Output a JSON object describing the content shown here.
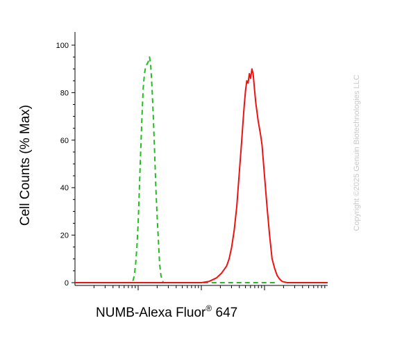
{
  "chart_data": {
    "type": "line",
    "title": "",
    "xlabel": "NUMB-Alexa Fluor",
    "xlabel_sup": "®",
    "xlabel_suffix": " 647",
    "ylabel": "Cell Counts (% Max)",
    "x_scale": "log",
    "x_ticks_shown": false,
    "ylim": [
      0,
      100
    ],
    "yticks": [
      0,
      20,
      40,
      60,
      80,
      100
    ],
    "ytick_labels": [
      "0",
      "20",
      "40",
      "60",
      "80",
      "100"
    ],
    "grid": false,
    "legend": "none",
    "copyright": "Copyright ©2025 Genuin Biotechnologies LLC",
    "series": [
      {
        "color": "#22bb22",
        "dash": "dashed",
        "points": [
          [
            0.0,
            0
          ],
          [
            0.22,
            0
          ],
          [
            0.23,
            1
          ],
          [
            0.235,
            3
          ],
          [
            0.24,
            8
          ],
          [
            0.245,
            15
          ],
          [
            0.25,
            25
          ],
          [
            0.255,
            40
          ],
          [
            0.26,
            55
          ],
          [
            0.265,
            70
          ],
          [
            0.27,
            82
          ],
          [
            0.275,
            88
          ],
          [
            0.28,
            91
          ],
          [
            0.285,
            92
          ],
          [
            0.29,
            93
          ],
          [
            0.295,
            95
          ],
          [
            0.3,
            91
          ],
          [
            0.305,
            82
          ],
          [
            0.31,
            70
          ],
          [
            0.315,
            55
          ],
          [
            0.32,
            40
          ],
          [
            0.325,
            28
          ],
          [
            0.33,
            18
          ],
          [
            0.335,
            8
          ],
          [
            0.34,
            3
          ],
          [
            0.345,
            1
          ],
          [
            0.35,
            0
          ],
          [
            0.4,
            0
          ],
          [
            0.5,
            0
          ],
          [
            0.62,
            0
          ],
          [
            0.64,
            0
          ],
          [
            0.66,
            0
          ],
          [
            0.7,
            0
          ],
          [
            0.72,
            0
          ],
          [
            0.8,
            0
          ]
        ]
      },
      {
        "color": "#ee1111",
        "dash": "solid",
        "points": [
          [
            0.0,
            0
          ],
          [
            0.45,
            0
          ],
          [
            0.5,
            0
          ],
          [
            0.53,
            0.5
          ],
          [
            0.56,
            2
          ],
          [
            0.58,
            4
          ],
          [
            0.6,
            7
          ],
          [
            0.61,
            10
          ],
          [
            0.62,
            15
          ],
          [
            0.63,
            22
          ],
          [
            0.64,
            32
          ],
          [
            0.65,
            46
          ],
          [
            0.66,
            60
          ],
          [
            0.665,
            68
          ],
          [
            0.67,
            75
          ],
          [
            0.675,
            81
          ],
          [
            0.68,
            85
          ],
          [
            0.685,
            84
          ],
          [
            0.69,
            88
          ],
          [
            0.695,
            86
          ],
          [
            0.7,
            90
          ],
          [
            0.705,
            88
          ],
          [
            0.71,
            82
          ],
          [
            0.715,
            76
          ],
          [
            0.72,
            72
          ],
          [
            0.725,
            68
          ],
          [
            0.73,
            65
          ],
          [
            0.735,
            62
          ],
          [
            0.74,
            58
          ],
          [
            0.75,
            45
          ],
          [
            0.76,
            32
          ],
          [
            0.77,
            20
          ],
          [
            0.78,
            10
          ],
          [
            0.79,
            6
          ],
          [
            0.8,
            3
          ],
          [
            0.81,
            1.5
          ],
          [
            0.82,
            0.5
          ],
          [
            0.84,
            0
          ],
          [
            1.0,
            0
          ]
        ]
      }
    ]
  }
}
